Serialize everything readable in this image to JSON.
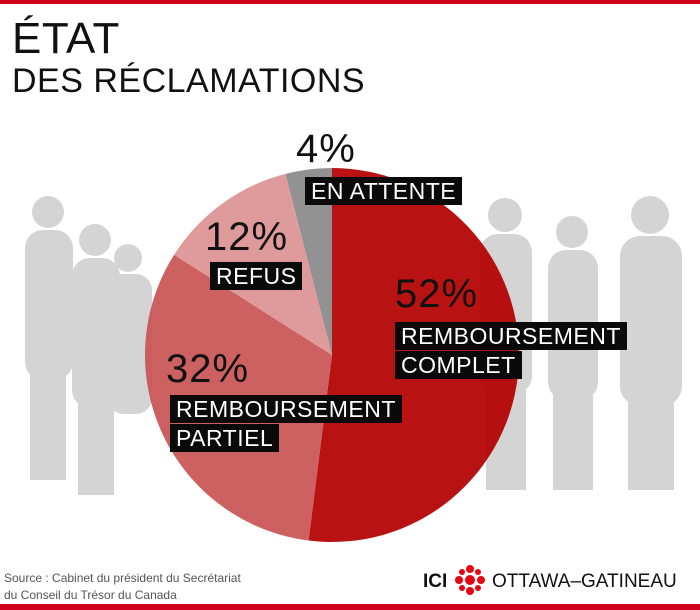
{
  "chart_data": {
    "type": "pie",
    "title": "ÉTAT",
    "subtitle": "DES RÉCLAMATIONS",
    "categories": [
      "REMBOURSEMENT COMPLET",
      "REMBOURSEMENT PARTIEL",
      "REFUS",
      "EN ATTENTE"
    ],
    "values": [
      52,
      32,
      12,
      4
    ],
    "value_labels": [
      "52%",
      "32%",
      "12%",
      "4%"
    ],
    "colors": [
      "#b40000",
      "#c95555",
      "#dd9393",
      "#8a8a8a"
    ],
    "source": [
      "Source : Cabinet du président du Secrétariat",
      "du Conseil du Trésor du Canada"
    ]
  },
  "logo": {
    "brand": "ICI",
    "region": "OTTAWA–GATINEAU"
  }
}
